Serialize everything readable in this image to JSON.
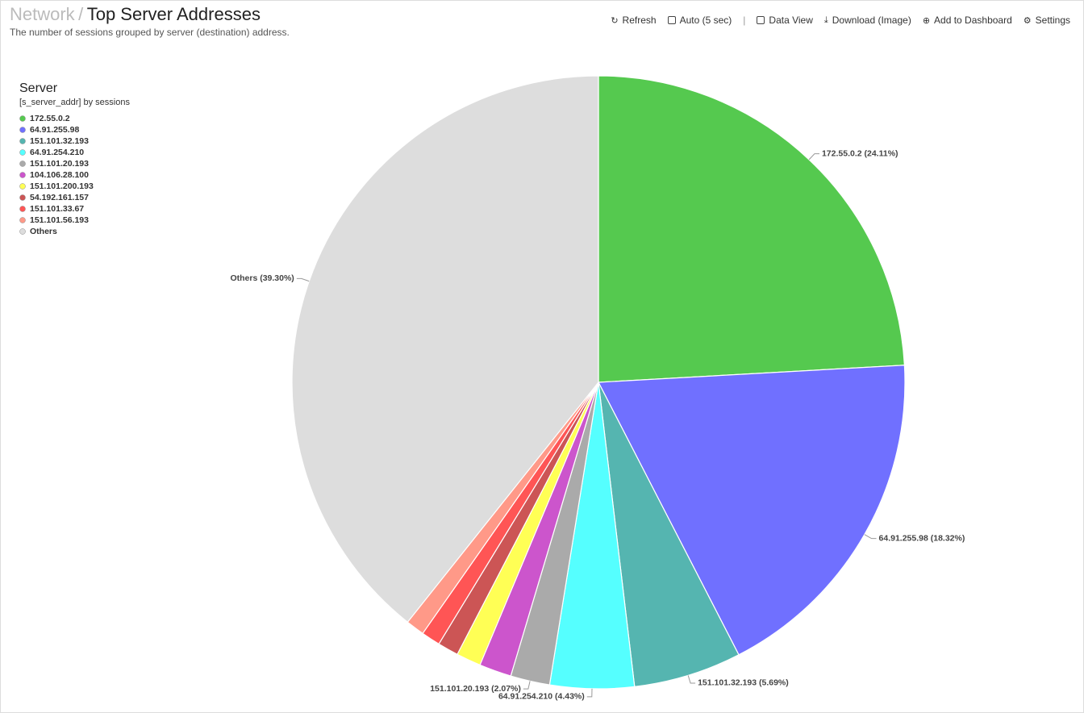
{
  "header": {
    "breadcrumb": "Network",
    "separator": "/",
    "title": "Top Server Addresses",
    "description": "The number of sessions grouped by server (destination) address."
  },
  "toolbar": [
    "Refresh",
    "Auto (5 sec)",
    "Data View",
    "Download (Image)",
    "Add to Dashboard",
    "Settings"
  ],
  "chart_data": {
    "type": "pie",
    "legend_title": "Server",
    "legend_subtitle": "[s_server_addr] by sessions",
    "categories": [
      "172.55.0.2",
      "64.91.255.98",
      "151.101.32.193",
      "64.91.254.210",
      "151.101.20.193",
      "104.106.28.100",
      "151.101.200.193",
      "54.192.161.157",
      "151.101.33.67",
      "151.101.56.193",
      "Others"
    ],
    "values": [
      24.11,
      18.32,
      5.69,
      4.43,
      2.07,
      1.7,
      1.3,
      1.1,
      1.0,
      0.98,
      39.3
    ],
    "value_labels": [
      "172.55.0.2 (24.11%)",
      "64.91.255.98 (18.32%)",
      "151.101.32.193 (5.69%)",
      "64.91.254.210 (4.43%)",
      "151.101.20.193 (2.07%)",
      null,
      null,
      null,
      null,
      null,
      "Others (39.30%)"
    ],
    "colors": [
      "#55c94f",
      "#7070ff",
      "#55b5b0",
      "#55ffff",
      "#aaaaaa",
      "#cc55cc",
      "#ffff55",
      "#cc5555",
      "#ff5555",
      "#ff9988",
      "#dddddd"
    ]
  }
}
